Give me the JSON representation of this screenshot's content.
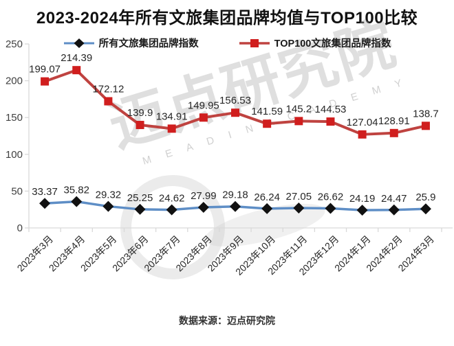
{
  "title": "2023-2024年所有文旅集团品牌均值与TOP100比较",
  "source": "数据来源：迈点研究院",
  "watermark": {
    "cjk": "迈点研究院",
    "latin": "M E A D I N  A C A D E M Y"
  },
  "colors": {
    "axis": "#d9d9d9",
    "tick_text": "#404040",
    "label_text": "#262626",
    "title_text": "#111111"
  },
  "chart_data": {
    "type": "line",
    "title": "2023-2024年所有文旅集团品牌均值与TOP100比较",
    "categories": [
      "2023年3月",
      "2023年4月",
      "2023年5月",
      "2023年6月",
      "2023年7月",
      "2023年8月",
      "2023年9月",
      "2023年10月",
      "2023年11月",
      "2023年12月",
      "2024年1月",
      "2024年2月",
      "2024年3月"
    ],
    "series": [
      {
        "name": "所有文旅集团品牌指数",
        "marker": "diamond",
        "line_color": "#5E8EC6",
        "marker_color": "#111111",
        "values": [
          33.37,
          35.82,
          29.32,
          25.25,
          24.62,
          27.99,
          29.18,
          26.24,
          27.05,
          26.62,
          24.19,
          24.47,
          25.9
        ]
      },
      {
        "name": "TOP100文旅集团品牌指数",
        "marker": "square",
        "line_color": "#BF4340",
        "marker_color": "#D01E1E",
        "values": [
          199.07,
          214.39,
          172.12,
          139.9,
          134.91,
          149.95,
          156.53,
          141.59,
          145.2,
          144.53,
          127.04,
          128.91,
          138.7
        ]
      }
    ],
    "xlabel": "",
    "ylabel": "",
    "ylim": [
      0,
      250
    ],
    "yticks": [
      0,
      50,
      100,
      150,
      200,
      250
    ],
    "grid": false,
    "legend_position": "top"
  }
}
